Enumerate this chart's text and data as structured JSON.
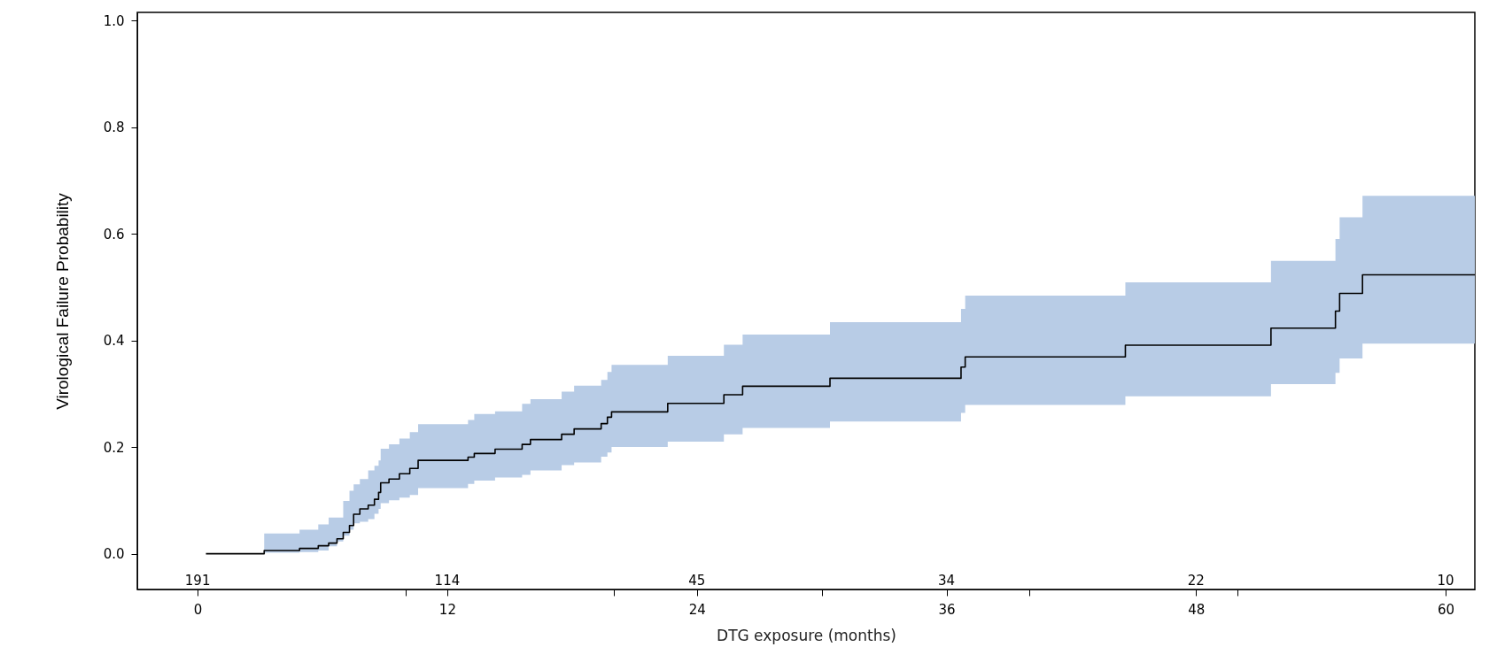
{
  "chart_data": {
    "type": "step",
    "xlabel": "DTG exposure (months)",
    "ylabel": "Virological Failure Probability",
    "xlim": [
      -2.9,
      61.4
    ],
    "ylim": [
      -0.067,
      1.015
    ],
    "xticks": [
      0,
      {
        "value": 10,
        "label": null
      },
      12,
      {
        "value": 20,
        "label": null
      },
      24,
      {
        "value": 30,
        "label": null
      },
      36,
      {
        "value": 40,
        "label": null
      },
      48,
      {
        "value": 50,
        "label": null
      },
      60
    ],
    "yticks": [
      {
        "value": 0,
        "label": "0.0"
      },
      0.2,
      0.4,
      0.6,
      0.8,
      {
        "value": 1,
        "label": "1.0"
      }
    ],
    "grid": false,
    "series": [
      {
        "color": "#000000",
        "x": [
          0.4,
          3.2,
          4.9,
          5.8,
          6.3,
          6.7,
          7.0,
          7.3,
          7.5,
          7.8,
          8.2,
          8.5,
          8.7,
          8.8,
          9.2,
          9.7,
          10.2,
          10.6,
          13.0,
          13.3,
          14.3,
          15.6,
          16.0,
          17.5,
          18.1,
          19.4,
          19.7,
          19.9,
          22.6,
          25.3,
          26.2,
          30.4,
          36.7,
          36.9,
          44.6,
          51.6,
          54.7,
          54.9,
          56.0,
          61.4
        ],
        "values": [
          0,
          0.006,
          0.01,
          0.015,
          0.02,
          0.028,
          0.04,
          0.053,
          0.074,
          0.084,
          0.091,
          0.102,
          0.115,
          0.133,
          0.14,
          0.15,
          0.16,
          0.175,
          0.181,
          0.188,
          0.196,
          0.205,
          0.214,
          0.224,
          0.234,
          0.244,
          0.256,
          0.266,
          0.282,
          0.298,
          0.314,
          0.329,
          0.35,
          0.369,
          0.391,
          0.423,
          0.455,
          0.488,
          0.523,
          0.523
        ],
        "lower": [
          null,
          0.002,
          0.003,
          0.006,
          0.014,
          0.023,
          0.034,
          0.045,
          0.057,
          0.06,
          0.065,
          0.075,
          0.084,
          0.095,
          0.1,
          0.105,
          0.11,
          0.123,
          0.131,
          0.137,
          0.143,
          0.148,
          0.156,
          0.166,
          0.171,
          0.182,
          0.19,
          0.2,
          0.21,
          0.224,
          0.236,
          0.248,
          0.264,
          0.279,
          0.295,
          0.318,
          0.339,
          0.366,
          0.394,
          0.394
        ],
        "upper": [
          null,
          0.038,
          0.045,
          0.055,
          0.068,
          0.068,
          0.099,
          0.118,
          0.13,
          0.14,
          0.156,
          0.165,
          0.175,
          0.197,
          0.205,
          0.216,
          0.228,
          0.243,
          0.251,
          0.262,
          0.267,
          0.281,
          0.29,
          0.304,
          0.315,
          0.326,
          0.341,
          0.354,
          0.371,
          0.392,
          0.411,
          0.434,
          0.459,
          0.484,
          0.509,
          0.549,
          0.59,
          0.631,
          0.671,
          0.671
        ]
      }
    ],
    "annotations": [
      "191",
      "114",
      "45",
      "34",
      "22",
      "10"
    ]
  }
}
